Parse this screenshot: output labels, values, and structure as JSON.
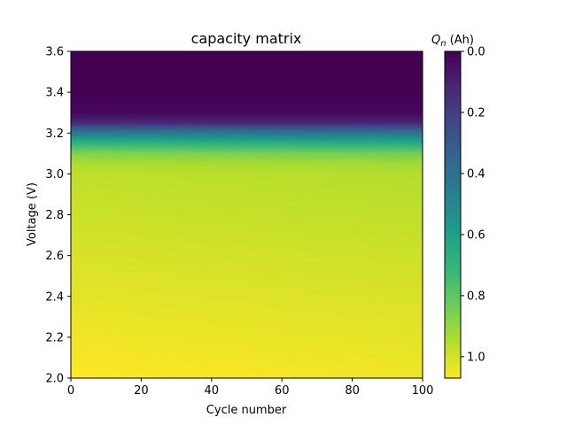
{
  "chart_data": {
    "type": "heatmap",
    "title": "capacity matrix",
    "xlabel": "Cycle number",
    "ylabel": "Voltage (V)",
    "xlim": [
      0,
      100
    ],
    "ylim": [
      2.0,
      3.6
    ],
    "x_ticks": [
      "0",
      "20",
      "40",
      "60",
      "80",
      "100"
    ],
    "y_ticks": [
      "2.0",
      "2.2",
      "2.4",
      "2.6",
      "2.8",
      "3.0",
      "3.2",
      "3.4",
      "3.6"
    ],
    "colormap": "viridis_r",
    "colorbar": {
      "label_symbol": "Q",
      "label_subscript": "n",
      "label_unit": " (Ah)",
      "range": [
        0.0,
        1.07
      ],
      "ticks": [
        "0.0",
        "0.2",
        "0.4",
        "0.6",
        "0.8",
        "1.0"
      ]
    },
    "voltage_profile": {
      "voltage": [
        2.0,
        2.2,
        2.4,
        2.6,
        2.8,
        3.0,
        3.05,
        3.1,
        3.15,
        3.2,
        3.25,
        3.3,
        3.4,
        3.6
      ],
      "capacity_at_cycle_0": [
        1.07,
        1.05,
        1.03,
        1.01,
        0.99,
        0.97,
        0.94,
        0.87,
        0.7,
        0.45,
        0.12,
        0.02,
        0.0,
        0.0
      ],
      "capacity_at_cycle_100": [
        1.05,
        1.03,
        1.01,
        0.99,
        0.97,
        0.95,
        0.92,
        0.84,
        0.66,
        0.42,
        0.11,
        0.02,
        0.0,
        0.0
      ]
    }
  }
}
